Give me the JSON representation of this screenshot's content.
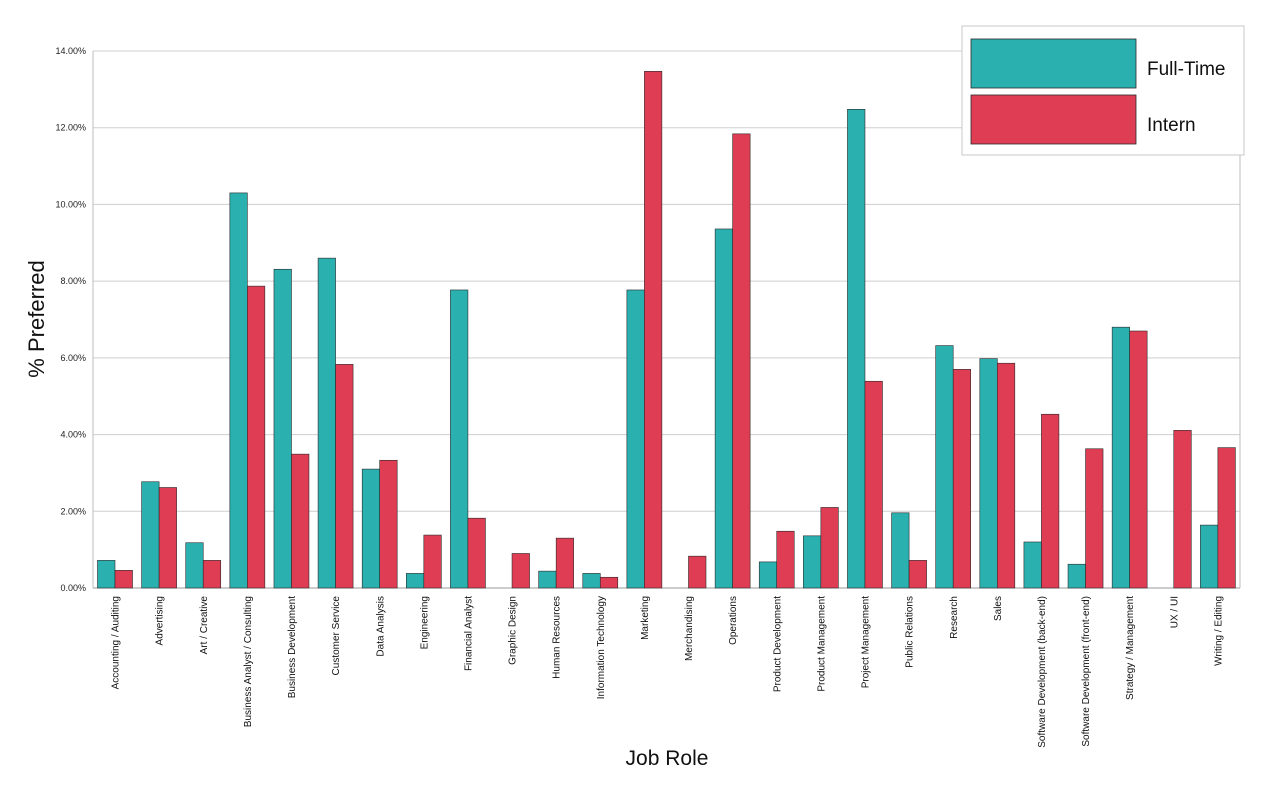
{
  "chart_data": {
    "type": "bar",
    "xlabel": "Job Role",
    "ylabel": "% Preferred",
    "ylim": [
      0,
      14
    ],
    "yticks": [
      0,
      2,
      4,
      6,
      8,
      10,
      12,
      14
    ],
    "y_tick_format": "percent_2dp",
    "grid": true,
    "legend_position": "top-right",
    "categories": [
      "Accounting / Auditing",
      "Advertising",
      "Art / Creative",
      "Business Analyst / Consulting",
      "Business Development",
      "Customer Service",
      "Data Analysis",
      "Engineering",
      "Financial Analyst",
      "Graphic Design",
      "Human Resources",
      "Information Technology",
      "Marketing",
      "Merchandising",
      "Operations",
      "Product Development",
      "Product Management",
      "Project Management",
      "Public Relations",
      "Research",
      "Sales",
      "Software Development (back-end)",
      "Software Development (front-end)",
      "Strategy / Management",
      "UX / UI",
      "Writing / Editing"
    ],
    "series": [
      {
        "name": "Full-Time",
        "color": "#2bb0b0",
        "values": [
          0.72,
          2.77,
          1.18,
          10.3,
          8.31,
          8.6,
          3.1,
          0.38,
          7.77,
          0.0,
          0.44,
          0.38,
          7.77,
          0.0,
          9.36,
          0.68,
          1.36,
          12.48,
          1.96,
          6.32,
          5.98,
          1.2,
          0.62,
          6.8,
          0.0,
          1.64
        ]
      },
      {
        "name": "Intern",
        "color": "#df3d54",
        "values": [
          0.46,
          2.62,
          0.72,
          7.87,
          3.49,
          5.83,
          3.33,
          1.38,
          1.82,
          0.9,
          1.3,
          0.28,
          13.47,
          0.83,
          11.84,
          1.48,
          2.1,
          5.39,
          0.72,
          5.7,
          5.86,
          4.53,
          3.63,
          6.7,
          4.11,
          3.66
        ]
      }
    ]
  }
}
